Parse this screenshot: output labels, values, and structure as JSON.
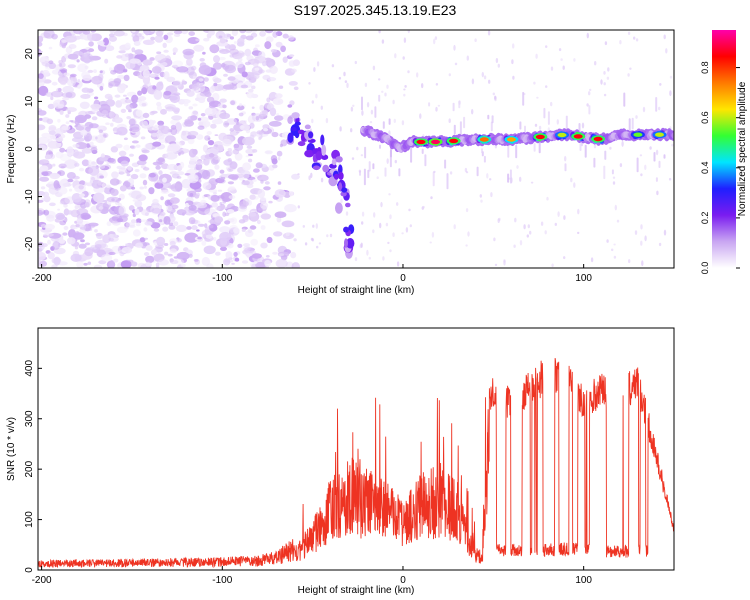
{
  "figure": {
    "title": "S197.2025.345.13.19.E23"
  },
  "chart_data": [
    {
      "type": "heatmap",
      "title": "S197.2025.345.13.19.E23",
      "xlabel": "Height of straight line (km)",
      "ylabel": "Frequency (Hz)",
      "xlim": [
        -202,
        150
      ],
      "ylim": [
        -25,
        25
      ],
      "xticks": [
        -200,
        -100,
        0,
        100
      ],
      "xtick_labels": [
        "-200",
        "-100",
        "0",
        "100"
      ],
      "yticks": [
        -20,
        -10,
        0,
        10,
        20
      ],
      "ytick_labels": [
        "-20",
        "-10",
        "0",
        "10",
        "20"
      ],
      "grid": false,
      "colorbar": {
        "label": "Normalized spectral amplitude",
        "range": [
          0.0,
          0.95
        ],
        "ticks": [
          0.0,
          0.2,
          0.4,
          0.6,
          0.8
        ],
        "tick_labels": [
          "0.0",
          "0.2",
          "0.4",
          "0.6",
          "0.8"
        ],
        "colormap": [
          "#ffffff",
          "#c9a6f2",
          "#7a1cf0",
          "#1f1fff",
          "#00e5ff",
          "#33ff33",
          "#ffe600",
          "#ff7a00",
          "#ff0000",
          "#ff00aa"
        ]
      },
      "features": {
        "noise_region_x": [
          -202,
          -58
        ],
        "noise_amplitude_range": [
          0.02,
          0.12
        ],
        "transition_region_x": [
          -58,
          -20
        ],
        "transition_track": [
          {
            "x": -60,
            "y": 5
          },
          {
            "x": -55,
            "y": 3
          },
          {
            "x": -50,
            "y": 1
          },
          {
            "x": -45,
            "y": -1
          },
          {
            "x": -40,
            "y": -3
          },
          {
            "x": -36,
            "y": -5
          },
          {
            "x": -33,
            "y": -10
          },
          {
            "x": -30,
            "y": -19
          }
        ],
        "signal_line": [
          {
            "x": -22,
            "y": 4
          },
          {
            "x": -15,
            "y": 3
          },
          {
            "x": -8,
            "y": 2
          },
          {
            "x": -2,
            "y": 0
          },
          {
            "x": 5,
            "y": 1.5
          },
          {
            "x": 20,
            "y": 1.5
          },
          {
            "x": 40,
            "y": 2
          },
          {
            "x": 60,
            "y": 2
          },
          {
            "x": 75,
            "y": 2.5
          },
          {
            "x": 90,
            "y": 3
          },
          {
            "x": 100,
            "y": 2.5
          },
          {
            "x": 110,
            "y": 2
          },
          {
            "x": 120,
            "y": 3
          },
          {
            "x": 135,
            "y": 3
          },
          {
            "x": 150,
            "y": 3
          }
        ],
        "signal_peaks": [
          {
            "x": 10,
            "amplitude": 0.85
          },
          {
            "x": 18,
            "amplitude": 0.9
          },
          {
            "x": 28,
            "amplitude": 0.85
          },
          {
            "x": 45,
            "amplitude": 0.75
          },
          {
            "x": 60,
            "amplitude": 0.7
          },
          {
            "x": 76,
            "amplitude": 0.85
          },
          {
            "x": 88,
            "amplitude": 0.6
          },
          {
            "x": 97,
            "amplitude": 0.85
          },
          {
            "x": 108,
            "amplitude": 0.85
          },
          {
            "x": 130,
            "amplitude": 0.55
          },
          {
            "x": 142,
            "amplitude": 0.6
          }
        ]
      }
    },
    {
      "type": "line",
      "xlabel": "Height of straight line (km)",
      "ylabel": "SNR (10 * v/v)",
      "xlim": [
        -202,
        150
      ],
      "ylim": [
        0,
        480
      ],
      "xticks": [
        -200,
        -100,
        0,
        100
      ],
      "xtick_labels": [
        "-200",
        "-100",
        "0",
        "100"
      ],
      "yticks": [
        0,
        100,
        200,
        300,
        400
      ],
      "ytick_labels": [
        "0",
        "100",
        "200",
        "300",
        "400"
      ],
      "grid": false,
      "color": "#ee3322",
      "series": [
        {
          "x": [
            -202,
            -150,
            -100,
            -80,
            -70,
            -60,
            -50,
            -40,
            -30,
            -20,
            -10,
            0,
            10,
            20,
            30,
            35,
            40,
            44,
            48,
            52,
            60,
            70,
            80,
            90,
            100,
            110,
            120,
            130,
            140,
            150
          ],
          "y": [
            12,
            14,
            16,
            18,
            25,
            40,
            80,
            160,
            190,
            170,
            150,
            120,
            160,
            180,
            150,
            90,
            40,
            30,
            350,
            340,
            330,
            360,
            390,
            380,
            330,
            360,
            350,
            370,
            230,
            80
          ]
        }
      ],
      "features": {
        "low_envelope_points": [
          {
            "x": 50,
            "y": 40
          },
          {
            "x": 70,
            "y": 35
          },
          {
            "x": 90,
            "y": 40
          },
          {
            "x": 110,
            "y": 35
          },
          {
            "x": 130,
            "y": 35
          },
          {
            "x": 148,
            "y": 45
          }
        ]
      }
    }
  ]
}
